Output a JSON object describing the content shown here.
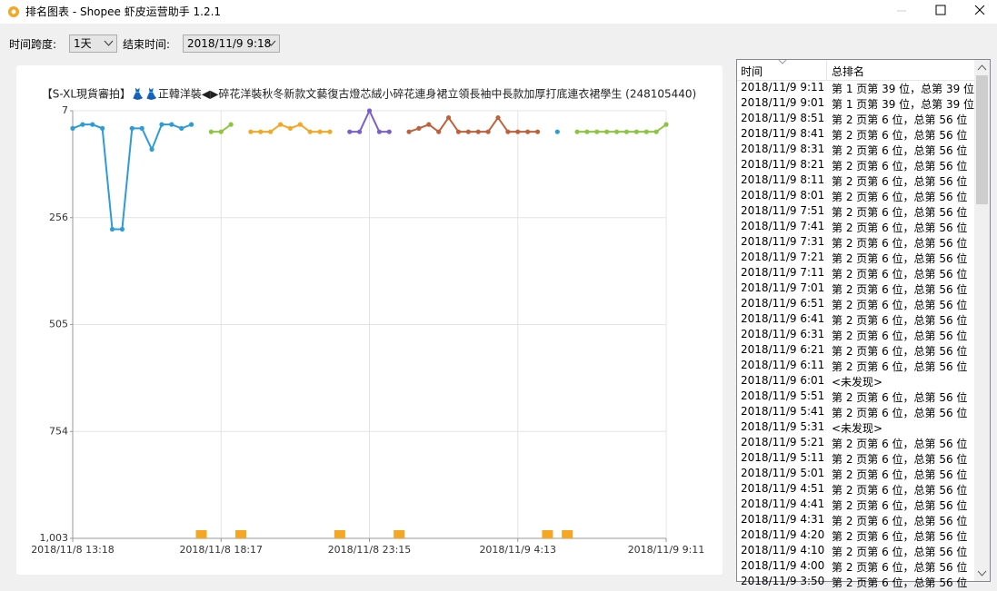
{
  "window": {
    "title": "排名图表 - Shopee 虾皮运营助手 1.2.1"
  },
  "controls": {
    "span_label": "时间跨度:",
    "span_value": "1天",
    "end_label": "结束时间:",
    "end_value": "2018/11/9 9:18"
  },
  "chart_data": {
    "type": "line",
    "title": "【S-XL現貨審拍】👗👗正韓洋裝◀▶碎花洋裝秋冬新款文藝復古燈芯絨小碎花連身裙立領長袖中長款加厚打底連衣裙學生 (248105440)",
    "categories": [
      "2018/11/8 13:18",
      null,
      null,
      null,
      null,
      null,
      null,
      null,
      null,
      null,
      null,
      null,
      null,
      null,
      null,
      "2018/11/8 18:17",
      null,
      null,
      null,
      null,
      null,
      null,
      null,
      null,
      null,
      null,
      null,
      null,
      null,
      null,
      "2018/11/8 23:15",
      null,
      null,
      null,
      null,
      null,
      null,
      null,
      null,
      null,
      null,
      null,
      null,
      null,
      null,
      "2018/11/9 4:13",
      null,
      null,
      null,
      null,
      null,
      null,
      null,
      null,
      null,
      null,
      null,
      null,
      null,
      null,
      "2018/11/9 9:11"
    ],
    "values": [
      48,
      39,
      39,
      48,
      283,
      283,
      48,
      48,
      97,
      39,
      39,
      48,
      39,
      null,
      56,
      56,
      39,
      null,
      56,
      56,
      56,
      39,
      48,
      39,
      56,
      56,
      56,
      null,
      56,
      56,
      7,
      56,
      56,
      null,
      56,
      48,
      39,
      56,
      23,
      56,
      56,
      56,
      56,
      23,
      56,
      56,
      56,
      56,
      null,
      56,
      null,
      56,
      56,
      56,
      56,
      56,
      56,
      56,
      56,
      56,
      39
    ],
    "segment_colors": [
      "#2e9cd6",
      "#8cc63f",
      "#f5a623",
      "#7b5fc9",
      "#c0603a",
      "#2e9cd6",
      "#8cc63f"
    ],
    "missing_color": "#f5a623",
    "ylim": [
      7,
      1003
    ],
    "y_inverted": true,
    "yticks": [
      7,
      256,
      505,
      754,
      {
        "value": 1003,
        "label": "1,003"
      }
    ],
    "grid": true
  },
  "table": {
    "headers": [
      "时间",
      "总排名"
    ],
    "rows": [
      [
        "2018/11/9 9:11",
        "第 1 页第 39 位，总第 39 位"
      ],
      [
        "2018/11/9 9:01",
        "第 1 页第 39 位，总第 39 位"
      ],
      [
        "2018/11/9 8:51",
        "第 2 页第 6 位，总第 56 位"
      ],
      [
        "2018/11/9 8:41",
        "第 2 页第 6 位，总第 56 位"
      ],
      [
        "2018/11/9 8:31",
        "第 2 页第 6 位，总第 56 位"
      ],
      [
        "2018/11/9 8:21",
        "第 2 页第 6 位，总第 56 位"
      ],
      [
        "2018/11/9 8:11",
        "第 2 页第 6 位，总第 56 位"
      ],
      [
        "2018/11/9 8:01",
        "第 2 页第 6 位，总第 56 位"
      ],
      [
        "2018/11/9 7:51",
        "第 2 页第 6 位，总第 56 位"
      ],
      [
        "2018/11/9 7:41",
        "第 2 页第 6 位，总第 56 位"
      ],
      [
        "2018/11/9 7:31",
        "第 2 页第 6 位，总第 56 位"
      ],
      [
        "2018/11/9 7:21",
        "第 2 页第 6 位，总第 56 位"
      ],
      [
        "2018/11/9 7:11",
        "第 2 页第 6 位，总第 56 位"
      ],
      [
        "2018/11/9 7:01",
        "第 2 页第 6 位，总第 56 位"
      ],
      [
        "2018/11/9 6:51",
        "第 2 页第 6 位，总第 56 位"
      ],
      [
        "2018/11/9 6:41",
        "第 2 页第 6 位，总第 56 位"
      ],
      [
        "2018/11/9 6:31",
        "第 2 页第 6 位，总第 56 位"
      ],
      [
        "2018/11/9 6:21",
        "第 2 页第 6 位，总第 56 位"
      ],
      [
        "2018/11/9 6:11",
        "第 2 页第 6 位，总第 56 位"
      ],
      [
        "2018/11/9 6:01",
        "<未发现>"
      ],
      [
        "2018/11/9 5:51",
        "第 2 页第 6 位，总第 56 位"
      ],
      [
        "2018/11/9 5:41",
        "第 2 页第 6 位，总第 56 位"
      ],
      [
        "2018/11/9 5:31",
        "<未发现>"
      ],
      [
        "2018/11/9 5:21",
        "第 2 页第 6 位，总第 56 位"
      ],
      [
        "2018/11/9 5:11",
        "第 2 页第 6 位，总第 56 位"
      ],
      [
        "2018/11/9 5:01",
        "第 2 页第 6 位，总第 56 位"
      ],
      [
        "2018/11/9 4:51",
        "第 2 页第 6 位，总第 56 位"
      ],
      [
        "2018/11/9 4:41",
        "第 2 页第 6 位，总第 56 位"
      ],
      [
        "2018/11/9 4:31",
        "第 2 页第 6 位，总第 56 位"
      ],
      [
        "2018/11/9 4:20",
        "第 2 页第 6 位，总第 56 位"
      ],
      [
        "2018/11/9 4:10",
        "第 2 页第 6 位，总第 56 位"
      ],
      [
        "2018/11/9 4:00",
        "第 2 页第 6 位，总第 56 位"
      ],
      [
        "2018/11/9 3:50",
        "第 2 页第 6 位，总第 56 位"
      ]
    ]
  }
}
